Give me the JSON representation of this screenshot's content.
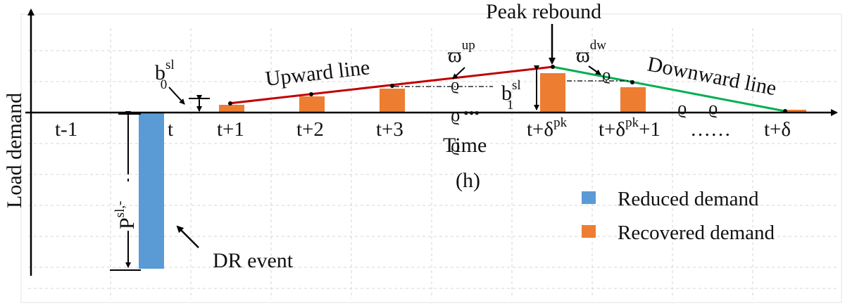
{
  "colors": {
    "reduced": "#5b9bd5",
    "recovered": "#ed7d31",
    "upward_line": "#c00000",
    "downward_line": "#00b050",
    "axis": "#000000"
  },
  "axes": {
    "y_label": "Load demand",
    "x_label_line1": "Time",
    "x_label_line2": "(h)"
  },
  "ticks": {
    "t_minus_1": "t-1",
    "t": "t",
    "t_plus_1": "t+1",
    "t_plus_2": "t+2",
    "t_plus_3": "t+3",
    "t_plus_pk_base": "t+δ",
    "t_plus_pk_sup": "pk",
    "t_plus_pk1_base": "t+δ",
    "t_plus_pk1_sup": "pk",
    "t_plus_pk1_tail": "+1",
    "dots": "……",
    "t_plus_delta": "t+δ"
  },
  "annotations": {
    "peak_rebound": "Peak rebound",
    "upward_line": "Upward line",
    "downward_line": "Downward line",
    "dr_event": "DR event",
    "b0_base": "b",
    "b0_sup": "sl",
    "b0_sub": "0",
    "b1_base": "b",
    "b1_sup": "sl",
    "b1_sub": "1",
    "p_base": "P",
    "p_sup": "sl,-",
    "varpi_up_base": "ϖ",
    "varpi_up_sup": "up",
    "varpi_dw_base": "ϖ",
    "varpi_dw_sup": "dw",
    "ellipsis_mid": "•••"
  },
  "legend": {
    "reduced": "Reduced demand",
    "recovered": "Recovered demand"
  }
}
